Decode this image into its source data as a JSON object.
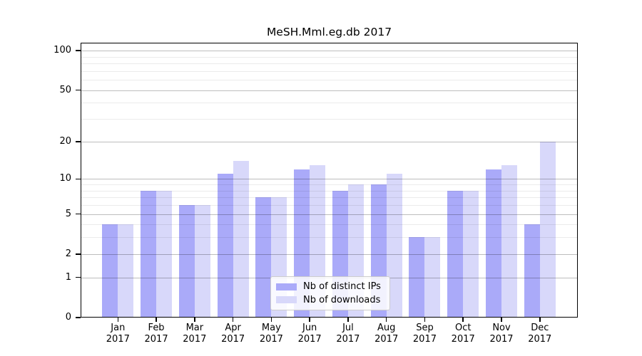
{
  "title": "MeSH.Mml.eg.db 2017",
  "chart_data": {
    "type": "bar",
    "title": "MeSH.Mml.eg.db 2017",
    "categories": [
      "Jan",
      "Feb",
      "Mar",
      "Apr",
      "May",
      "Jun",
      "Jul",
      "Aug",
      "Sep",
      "Oct",
      "Nov",
      "Dec"
    ],
    "category_year_suffix": "2017",
    "series": [
      {
        "name": "Nb of distinct IPs",
        "color": "#aaaaf9",
        "values": [
          4,
          8,
          6,
          11,
          7,
          12,
          8,
          9,
          3,
          8,
          12,
          4
        ]
      },
      {
        "name": "Nb of downloads",
        "color": "#d8d8fa",
        "values": [
          4,
          8,
          6,
          14,
          7,
          13,
          9,
          11,
          3,
          8,
          13,
          20
        ]
      }
    ],
    "xlabel": "",
    "ylabel": "",
    "yscale": "log1p",
    "ylim": [
      0,
      115
    ],
    "yticks": [
      0,
      1,
      2,
      5,
      10,
      20,
      50,
      100
    ],
    "yticks_minor": [
      3,
      4,
      6,
      7,
      8,
      9,
      30,
      40,
      60,
      70,
      80,
      90
    ],
    "grid": true,
    "legend_position": "lower center"
  },
  "colors": {
    "spine": "#000000",
    "grid_major": "rgba(0,0,0,0.26)",
    "grid_minor": "rgba(0,0,0,0.08)",
    "background": "#ffffff",
    "legend_border": "#cccccc",
    "text": "#000000"
  }
}
